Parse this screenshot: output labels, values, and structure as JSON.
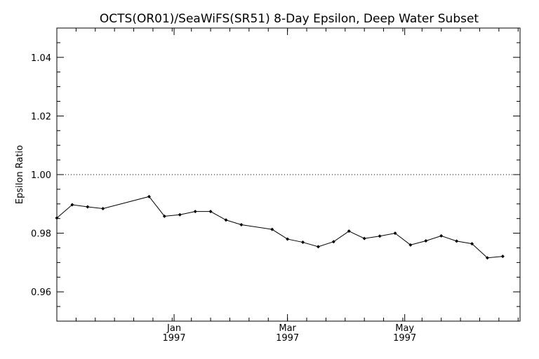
{
  "chart_data": {
    "type": "line",
    "title": "OCTS(OR01)/SeaWiFS(SR51) 8-Day Epsilon, Deep Water Subset",
    "xlabel": "",
    "ylabel": "Epsilon Ratio",
    "ylim": [
      0.95,
      1.05
    ],
    "xlim": [
      "1996-11-01",
      "1997-06-30"
    ],
    "y_ticks": [
      "0.96",
      "0.98",
      "1.00",
      "1.02",
      "1.04"
    ],
    "x_ticks": [
      {
        "date": "1997-01-01",
        "month": "Jan",
        "year": "1997"
      },
      {
        "date": "1997-03-01",
        "month": "Mar",
        "year": "1997"
      },
      {
        "date": "1997-05-01",
        "month": "May",
        "year": "1997"
      }
    ],
    "reference_line": {
      "y": 1.0,
      "style": "dotted"
    },
    "grid": false,
    "series": [
      {
        "marker": "diamond",
        "x": [
          "1996-11-01",
          "1996-11-09",
          "1996-11-17",
          "1996-11-25",
          "1996-12-19",
          "1996-12-27",
          "1997-01-04",
          "1997-01-12",
          "1997-01-20",
          "1997-01-28",
          "1997-02-05",
          "1997-02-21",
          "1997-03-01",
          "1997-03-09",
          "1997-03-17",
          "1997-03-25",
          "1997-04-02",
          "1997-04-10",
          "1997-04-18",
          "1997-04-26",
          "1997-05-04",
          "1997-05-12",
          "1997-05-20",
          "1997-05-28",
          "1997-06-05",
          "1997-06-13",
          "1997-06-21"
        ],
        "values": [
          0.9852,
          0.9897,
          0.989,
          0.9884,
          0.9925,
          0.9858,
          0.9863,
          0.9874,
          0.9874,
          0.9845,
          0.9829,
          0.9813,
          0.978,
          0.9769,
          0.9754,
          0.9771,
          0.9807,
          0.9782,
          0.979,
          0.98,
          0.976,
          0.9774,
          0.9791,
          0.9773,
          0.9764,
          0.9716,
          0.9721
        ]
      }
    ]
  }
}
